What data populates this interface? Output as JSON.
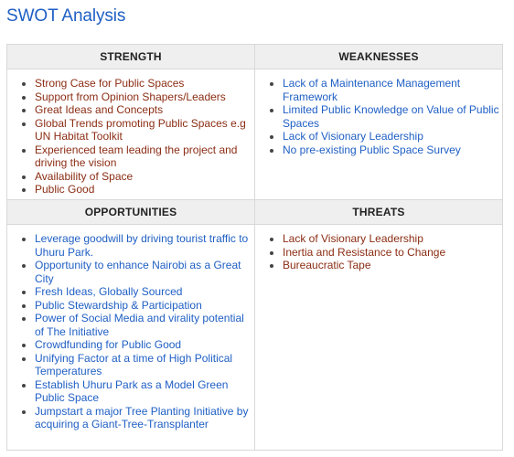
{
  "title": "SWOT Analysis",
  "colors": {
    "title": "#1f5fc4",
    "strength_text": "#8b2d14",
    "weakness_text": "#1f5fc4",
    "opportunity_text": "#1f5fc4",
    "threat_text": "#8b2d14",
    "header_bg": "#efefef",
    "border": "#d8d8d8"
  },
  "quadrants": {
    "strength": {
      "heading": "STRENGTH",
      "items": [
        "Strong Case for Public Spaces",
        "Support from Opinion Shapers/Leaders",
        "Great Ideas and Concepts",
        "Global Trends promoting Public Spaces e.g UN Habitat Toolkit",
        "Experienced team leading the project and driving the vision",
        "Availability of Space",
        "Public Good"
      ]
    },
    "weaknesses": {
      "heading": "WEAKNESSES",
      "items": [
        "Lack of a Maintenance Management Framework",
        "Limited Public Knowledge on Value of Public Spaces",
        "Lack of Visionary Leadership",
        "No pre-existing Public Space Survey"
      ]
    },
    "opportunities": {
      "heading": "OPPORTUNITIES",
      "items": [
        "Leverage goodwill by driving tourist traffic to Uhuru Park.",
        "Opportunity to enhance Nairobi as a Great City",
        "Fresh Ideas, Globally Sourced",
        "Public Stewardship & Participation",
        "Power of Social Media and virality potential of The Initiative",
        "Crowdfunding for Public Good",
        "Unifying Factor at a time of High Political Temperatures",
        "Establish Uhuru Park as a Model Green Public Space",
        "Jumpstart a major Tree Planting Initiative by acquiring a Giant-Tree-Transplanter"
      ]
    },
    "threats": {
      "heading": "THREATS",
      "items": [
        "Lack of Visionary Leadership",
        "Inertia and Resistance to Change",
        "Bureaucratic Tape"
      ]
    }
  }
}
